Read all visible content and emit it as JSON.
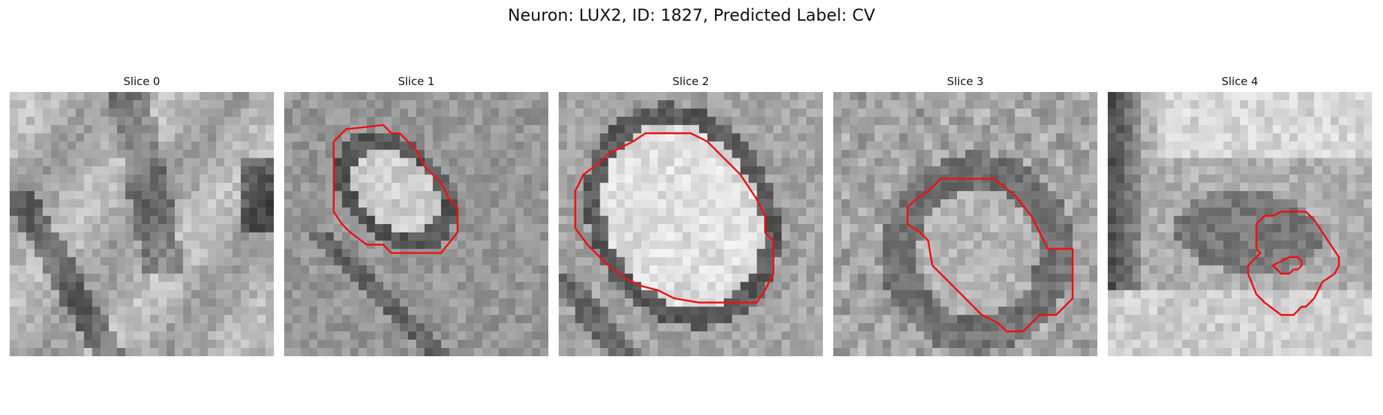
{
  "figure": {
    "title": "Neuron: LUX2, ID: 1827, Predicted Label: CV"
  },
  "contour_color": "#ee1111",
  "panels": [
    {
      "title": "Slice 0",
      "has_contour": false
    },
    {
      "title": "Slice 1",
      "has_contour": true
    },
    {
      "title": "Slice 2",
      "has_contour": true
    },
    {
      "title": "Slice 3",
      "has_contour": true
    },
    {
      "title": "Slice 4",
      "has_contour": true
    }
  ]
}
